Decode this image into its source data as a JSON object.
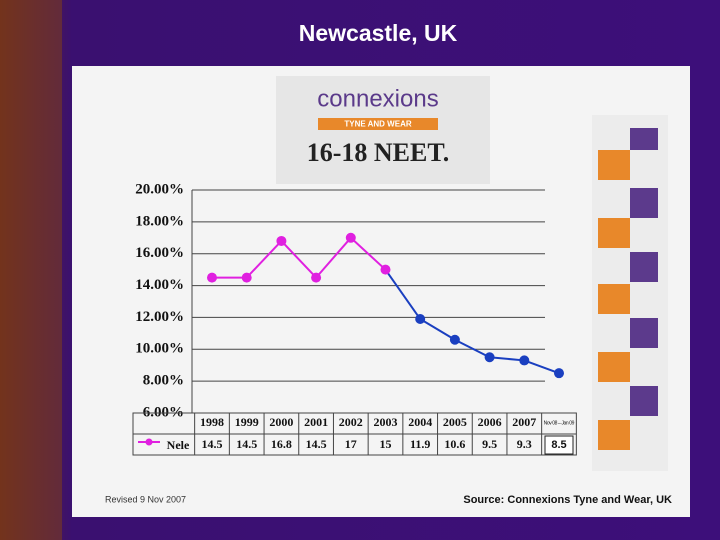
{
  "slide": {
    "title": "Newcastle, UK",
    "logo": "connexions",
    "logo_subtitle": "TYNE AND WEAR",
    "revised": "Revised 9 Nov 2007",
    "source": "Source: Connexions Tyne and Wear, UK"
  },
  "chart_data": {
    "type": "line",
    "title": "16-18 NEET.",
    "categories": [
      "1998",
      "1999",
      "2000",
      "2001",
      "2002",
      "2003",
      "2004",
      "2005",
      "2006",
      "2007",
      "Nov 08 – Jan 09"
    ],
    "series": [
      {
        "name": "Nele",
        "color": "#e020e0",
        "point_colors": [
          "#e020e0",
          "#e020e0",
          "#e020e0",
          "#e020e0",
          "#e020e0",
          "#e020e0",
          "#1a3fc0",
          "#1a3fc0",
          "#1a3fc0",
          "#1a3fc0",
          "#1a3fc0"
        ],
        "values": [
          14.5,
          14.5,
          16.8,
          14.5,
          17,
          15,
          11.9,
          10.6,
          9.5,
          9.3,
          8.5
        ]
      }
    ],
    "ylim": [
      6,
      20
    ],
    "yticks": [
      {
        "value": 6,
        "label": "6.00%"
      },
      {
        "value": 8,
        "label": "8.00%"
      },
      {
        "value": 10,
        "label": "10.00%"
      },
      {
        "value": 12,
        "label": "12.00%"
      },
      {
        "value": 14,
        "label": "14.00%"
      },
      {
        "value": 16,
        "label": "16.00%"
      },
      {
        "value": 18,
        "label": "18.00%"
      },
      {
        "value": 20,
        "label": "20.00%"
      }
    ],
    "grid": true
  }
}
